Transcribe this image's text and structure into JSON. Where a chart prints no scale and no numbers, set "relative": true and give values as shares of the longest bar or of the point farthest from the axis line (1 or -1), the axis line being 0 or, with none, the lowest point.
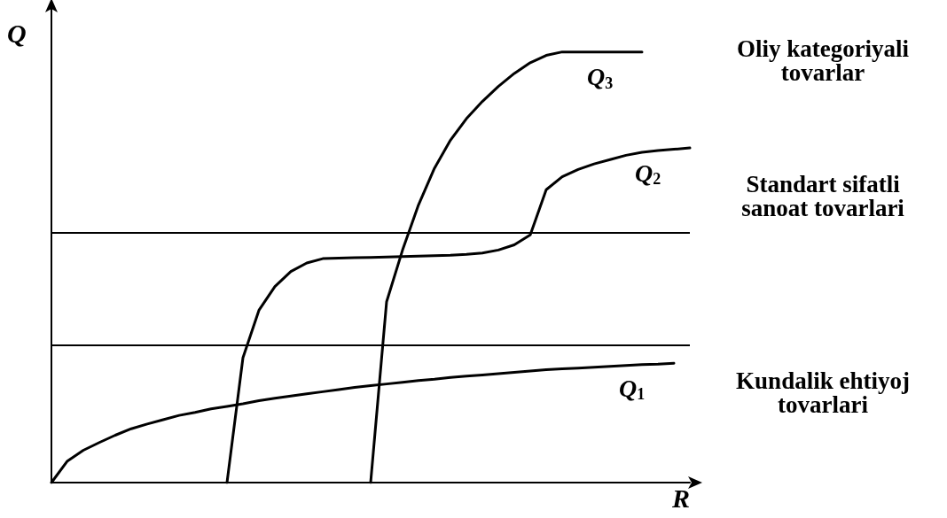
{
  "chart_data": {
    "type": "line",
    "relative": true,
    "xlabel": "R",
    "ylabel": "Q",
    "tick_labels": false,
    "grid": false,
    "legend": false,
    "marker": "none",
    "line_style": "solid",
    "categories": [
      null,
      null,
      null,
      null,
      null,
      null,
      null,
      null,
      null,
      null,
      null,
      null,
      null,
      null,
      null,
      null,
      null,
      null,
      null,
      null,
      null,
      null,
      null,
      null,
      null,
      null,
      null,
      null,
      null,
      null,
      null,
      null,
      null,
      null,
      null,
      null,
      null,
      null,
      null,
      null,
      null
    ],
    "series": [
      {
        "name": "Q$_{1}$",
        "color": "#000000",
        "values": [
          0,
          0.05,
          0.075,
          0.093,
          0.11,
          0.125,
          0.136,
          0.146,
          0.156,
          0.163,
          0.171,
          0.177,
          0.183,
          0.19,
          0.196,
          0.201,
          0.206,
          0.211,
          0.216,
          0.221,
          0.225,
          0.229,
          0.233,
          0.237,
          0.24,
          0.244,
          0.247,
          0.25,
          0.253,
          0.256,
          0.259,
          0.262,
          0.264,
          0.266,
          0.268,
          0.27,
          0.272,
          0.274,
          0.275,
          0.277,
          null
        ]
      },
      {
        "name": "Q$_{2}$",
        "color": "#000000",
        "values": [
          null,
          null,
          null,
          null,
          null,
          null,
          null,
          null,
          null,
          null,
          null,
          0,
          0.29,
          0.4,
          0.455,
          0.49,
          0.51,
          0.52,
          0.521,
          0.522,
          0.523,
          0.524,
          0.525,
          0.526,
          0.527,
          0.528,
          0.53,
          0.533,
          0.54,
          0.552,
          0.575,
          0.68,
          0.71,
          0.727,
          0.74,
          0.75,
          0.76,
          0.767,
          0.771,
          0.774,
          0.777
        ]
      },
      {
        "name": "Q$_{3}$",
        "color": "#000000",
        "values": [
          null,
          null,
          null,
          null,
          null,
          null,
          null,
          null,
          null,
          null,
          null,
          null,
          null,
          null,
          null,
          null,
          null,
          null,
          null,
          null,
          0,
          0.42,
          0.54,
          0.645,
          0.73,
          0.795,
          0.845,
          0.885,
          0.92,
          0.95,
          0.975,
          0.992,
          1,
          1,
          1,
          1,
          1,
          1,
          null,
          null,
          null
        ]
      }
    ],
    "ref_lines": [
      {
        "axis": "y",
        "value": 0.583,
        "color": "#000000"
      },
      {
        "axis": "y",
        "value": 0.317,
        "color": "#000000"
      }
    ],
    "annotations": [
      "Oliy kategoriyali\ntovarlar",
      "Standart sifatli\nsanoat tovarlari",
      "Kundalik ehtiyoj\ntovarlari"
    ]
  }
}
